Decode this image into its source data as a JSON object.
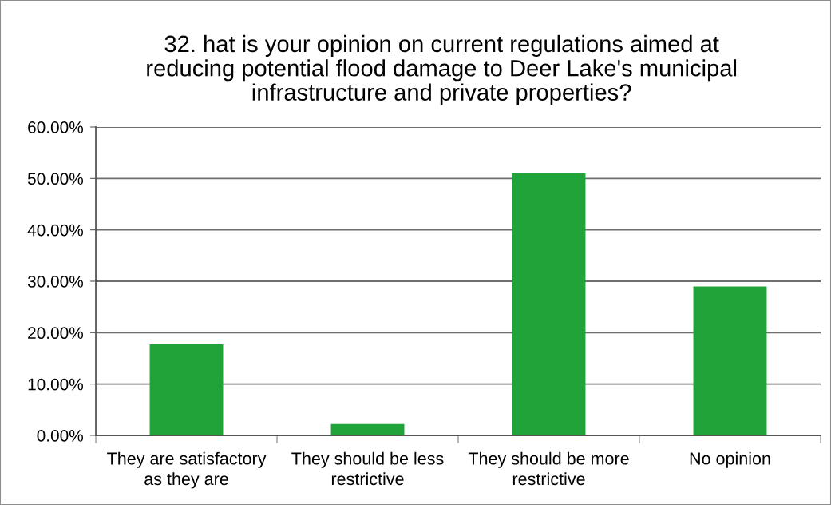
{
  "chart_data": {
    "type": "bar",
    "title": "32. hat is your opinion on current regulations aimed at\nreducing potential flood damage to Deer Lake's municipal\ninfrastructure and private properties?",
    "categories": [
      "They are satisfactory\nas they are",
      "They should be less\nrestrictive",
      "They should be more\nrestrictive",
      "No opinion"
    ],
    "values": [
      17.7,
      2.2,
      51.0,
      29.0
    ],
    "color": "#22a33a",
    "ylim": [
      0,
      60
    ],
    "yticks": [
      {
        "value": 0,
        "label": "0.00%"
      },
      {
        "value": 10,
        "label": "10.00%"
      },
      {
        "value": 20,
        "label": "20.00%"
      },
      {
        "value": 30,
        "label": "30.00%"
      },
      {
        "value": 40,
        "label": "40.00%"
      },
      {
        "value": 50,
        "label": "50.00%"
      },
      {
        "value": 60,
        "label": "60.00%"
      }
    ],
    "grid": "y",
    "legend": false
  }
}
